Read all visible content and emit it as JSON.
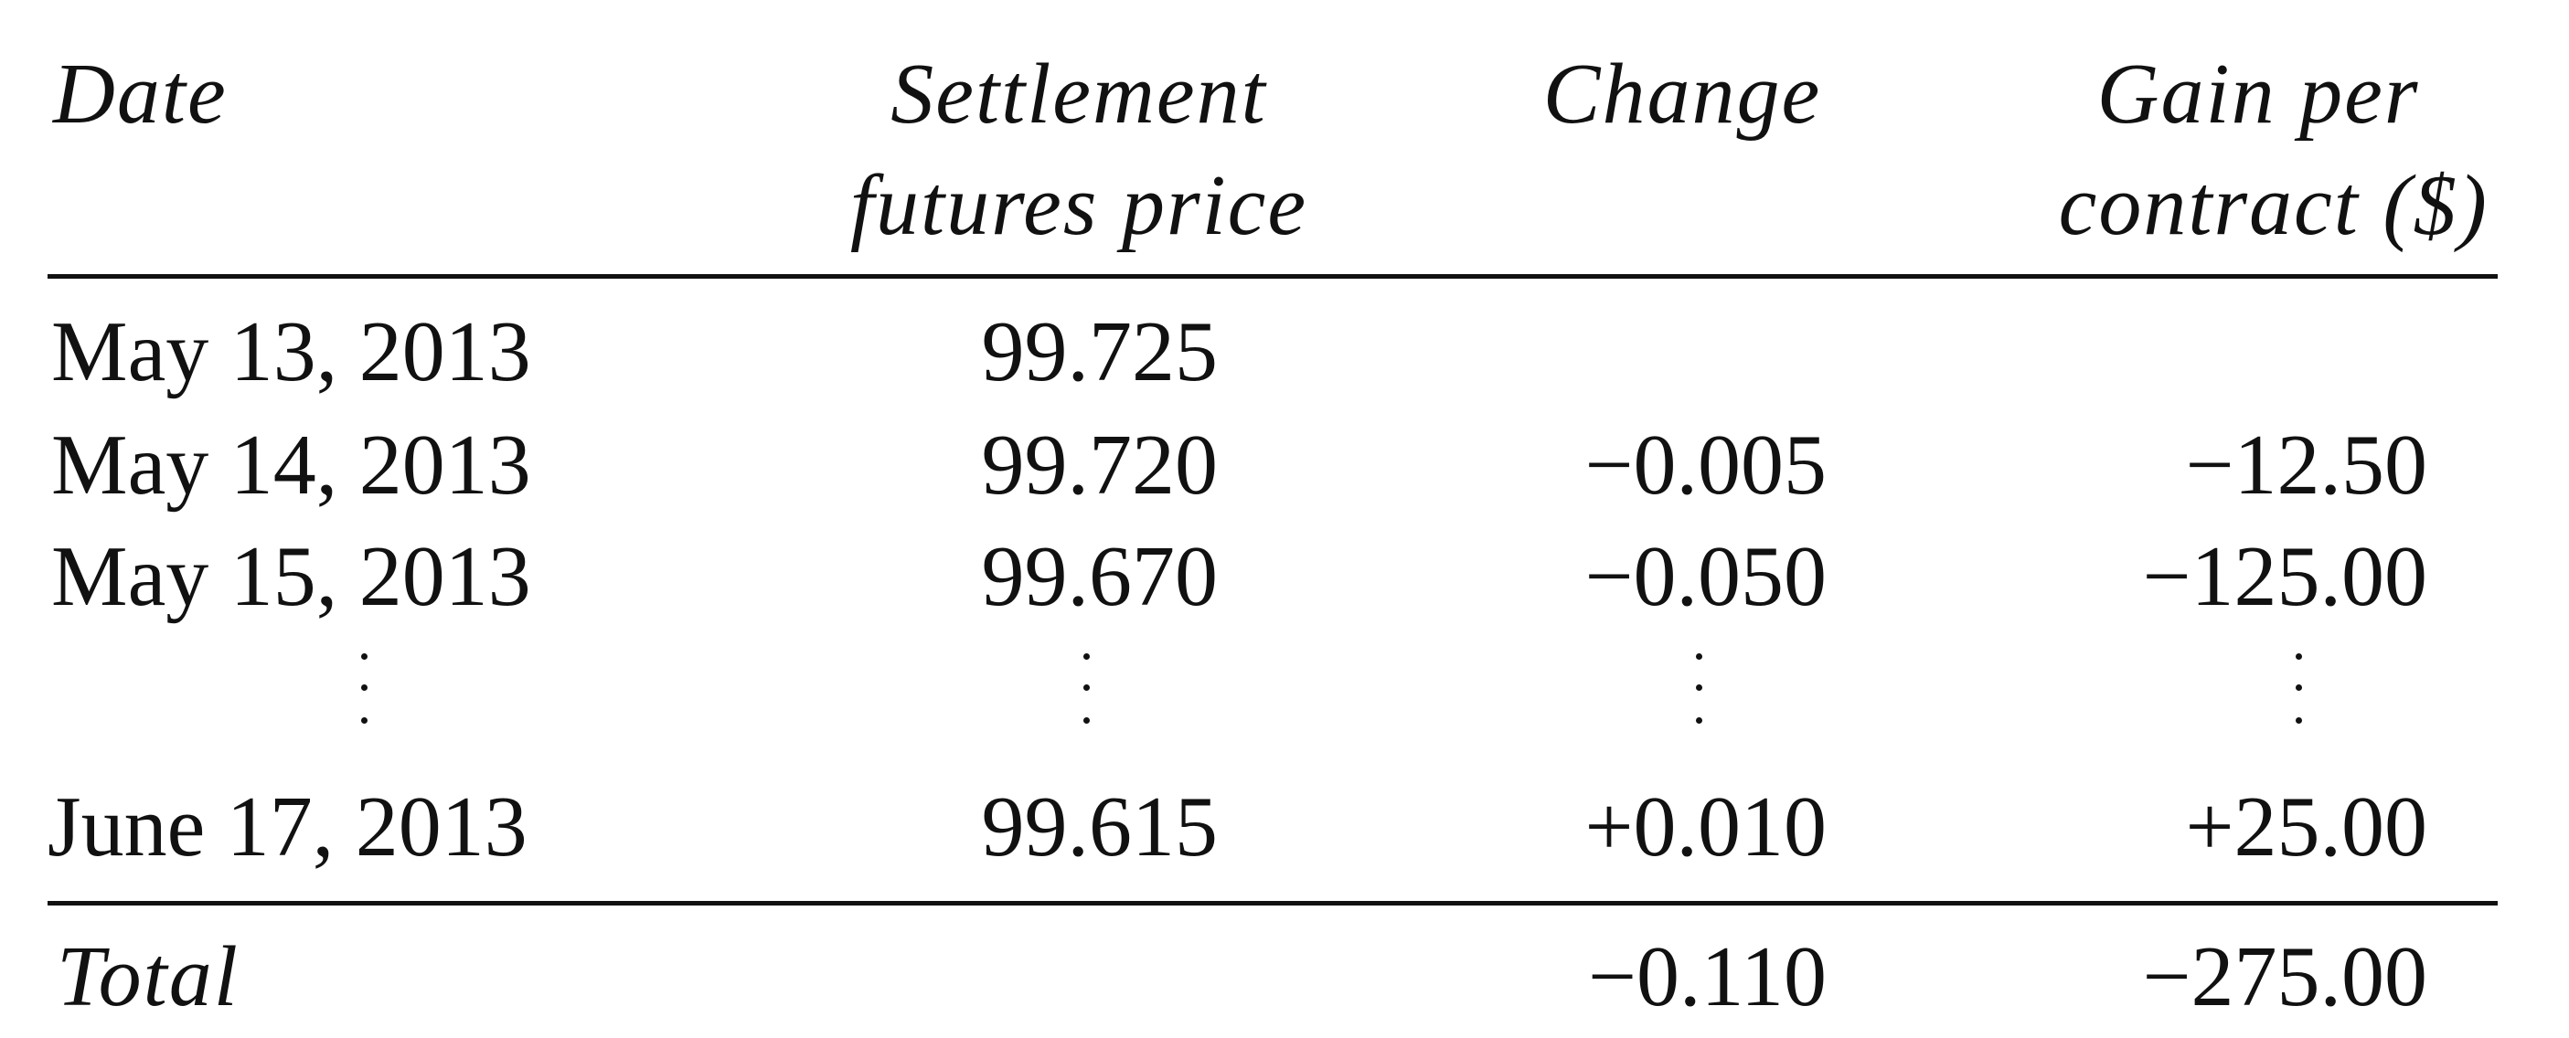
{
  "table": {
    "headers": {
      "date": "Date",
      "settlement_line1": "Settlement",
      "settlement_line2": "futures price",
      "change": "Change",
      "gain_line1": "Gain per",
      "gain_line2": "contract ($)"
    },
    "rows": [
      {
        "date": "May 13, 2013",
        "price": "99.725",
        "change": "",
        "gain": ""
      },
      {
        "date": "May 14, 2013",
        "price": "99.720",
        "change": "−0.005",
        "gain": "−12.50"
      },
      {
        "date": "May 15, 2013",
        "price": "99.670",
        "change": "−0.050",
        "gain": "−125.00"
      },
      {
        "date": "June 17, 2013",
        "price": "99.615",
        "change": "+0.010",
        "gain": "+25.00"
      }
    ],
    "total": {
      "label": "Total",
      "change": "−0.110",
      "gain": "−275.00"
    }
  }
}
